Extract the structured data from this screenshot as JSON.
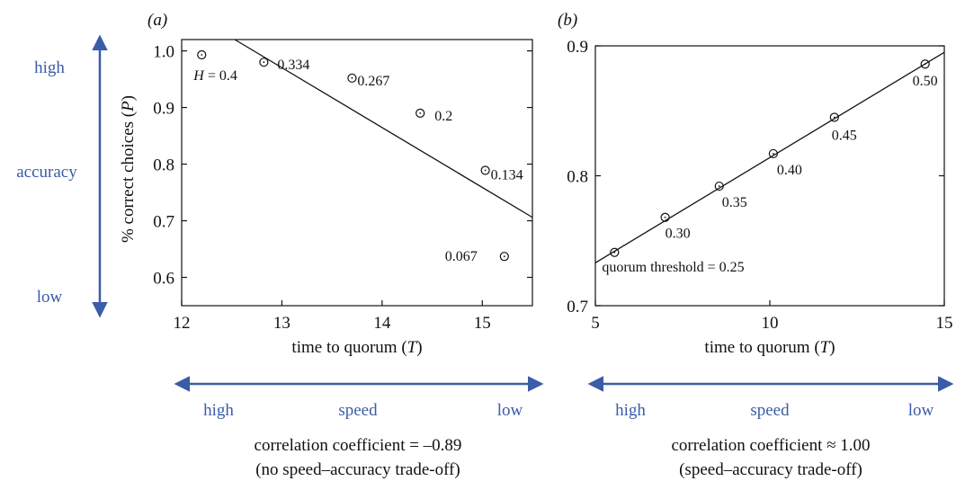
{
  "colors": {
    "arrow": "#3b5ca8",
    "ink": "#111111"
  },
  "left_axis": {
    "top_label": "high",
    "middle_label": "accuracy",
    "bottom_label": "low"
  },
  "chart_data": [
    {
      "type": "scatter",
      "panel_label": "(a)",
      "xlabel": "time to quorum (T)",
      "ylabel": "% correct choices (P)",
      "xlim": [
        12,
        15.5
      ],
      "ylim": [
        0.55,
        1.02
      ],
      "xticks": [
        "12",
        "13",
        "14",
        "15"
      ],
      "yticks": [
        "0.6",
        "0.7",
        "0.8",
        "0.9",
        "1.0"
      ],
      "points": [
        {
          "x": 12.2,
          "y": 0.993,
          "label": "H = 0.4"
        },
        {
          "x": 12.82,
          "y": 0.98,
          "label": "0.334"
        },
        {
          "x": 13.7,
          "y": 0.952,
          "label": "0.267"
        },
        {
          "x": 14.38,
          "y": 0.89,
          "label": "0.2"
        },
        {
          "x": 15.03,
          "y": 0.789,
          "label": "0.134"
        },
        {
          "x": 15.22,
          "y": 0.637,
          "label": "0.067"
        }
      ],
      "fit_line": [
        {
          "x": 12.53,
          "y": 1.02
        },
        {
          "x": 15.5,
          "y": 0.706
        }
      ],
      "speed_axis": {
        "left": "high",
        "middle": "speed",
        "right": "low"
      },
      "caption_line1": "correlation coefficient = –0.89",
      "caption_line2": "(no speed–accuracy trade-off)"
    },
    {
      "type": "scatter",
      "panel_label": "(b)",
      "xlabel": "time to quorum (T)",
      "ylabel": "",
      "xlim": [
        5,
        15
      ],
      "ylim": [
        0.7,
        0.9
      ],
      "xticks": [
        "5",
        "10",
        "15"
      ],
      "yticks": [
        "0.7",
        "0.8",
        "0.9"
      ],
      "points": [
        {
          "x": 5.55,
          "y": 0.741,
          "label": "quorum threshold = 0.25"
        },
        {
          "x": 7.0,
          "y": 0.768,
          "label": "0.30"
        },
        {
          "x": 8.55,
          "y": 0.792,
          "label": "0.35"
        },
        {
          "x": 10.1,
          "y": 0.817,
          "label": "0.40"
        },
        {
          "x": 11.85,
          "y": 0.845,
          "label": "0.45"
        },
        {
          "x": 14.45,
          "y": 0.886,
          "label": "0.50"
        }
      ],
      "fit_line": [
        {
          "x": 5,
          "y": 0.733
        },
        {
          "x": 15,
          "y": 0.895
        }
      ],
      "speed_axis": {
        "left": "high",
        "middle": "speed",
        "right": "low"
      },
      "caption_line1": "correlation coefficient ≈ 1.00",
      "caption_line2": "(speed–accuracy trade-off)"
    }
  ]
}
